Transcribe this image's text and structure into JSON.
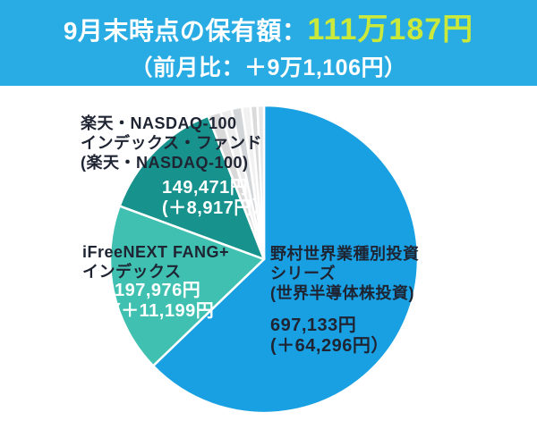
{
  "header": {
    "title_label": "9月末時点の保有額：",
    "total_amount": "111万187円",
    "mom_change": "（前月比：＋9万1,106円）",
    "bg_color": "#29ACE3",
    "amount_color": "#CBE93A",
    "title_color": "#FFFFFF"
  },
  "chart_data": {
    "type": "pie",
    "title": "9月末時点の保有額：111万187円（前月比：＋9万1,106円）",
    "total_value": 1110187,
    "unit": "円",
    "legend_position": "none",
    "start_angle_deg": 0,
    "direction": "clockwise",
    "others_unlabeled_total": 65607,
    "slices": [
      {
        "label": "野村世界業種別投資シリーズ(世界半導体株投資)",
        "value": 697133,
        "change_value": 64296,
        "color": "#18A0E2"
      },
      {
        "label": "iFreeNEXT FANG+インデックス",
        "value": 197976,
        "change_value": 11199,
        "color": "#3FC0B0"
      },
      {
        "label": "楽天・NASDAQ-100インデックス・ファンド(楽天・NASDAQ-100)",
        "value": 149471,
        "change_value": 8917,
        "color": "#17928C"
      },
      {
        "label": "",
        "value": 15000,
        "color": "#D9D9D9"
      },
      {
        "label": "",
        "value": 13000,
        "color": "#EDEDED"
      },
      {
        "label": "",
        "value": 12000,
        "color": "#D3D6D9"
      },
      {
        "label": "",
        "value": 10000,
        "color": "#F1F1F1"
      },
      {
        "label": "",
        "value": 8000,
        "color": "#DADADA"
      },
      {
        "label": "",
        "value": 7607,
        "color": "#E7E7E7"
      }
    ]
  },
  "funds": {
    "rakuten": {
      "name_line1": "楽天・NASDAQ-100",
      "name_line2": "インデックス・ファンド",
      "name_line3": "(楽天・NASDAQ-100)",
      "amount": "149,471円",
      "change": "(＋8,917円）"
    },
    "ifree": {
      "name_line1": "iFreeNEXT FANG+",
      "name_line2": "インデックス",
      "amount": "197,976円",
      "change": "(＋11,199円"
    },
    "nomura": {
      "name_line1": "野村世界業種別投資",
      "name_line2": "シリーズ",
      "name_line3": "(世界半導体株投資)",
      "amount": "697,133円",
      "change": "(＋64,296円）"
    }
  }
}
